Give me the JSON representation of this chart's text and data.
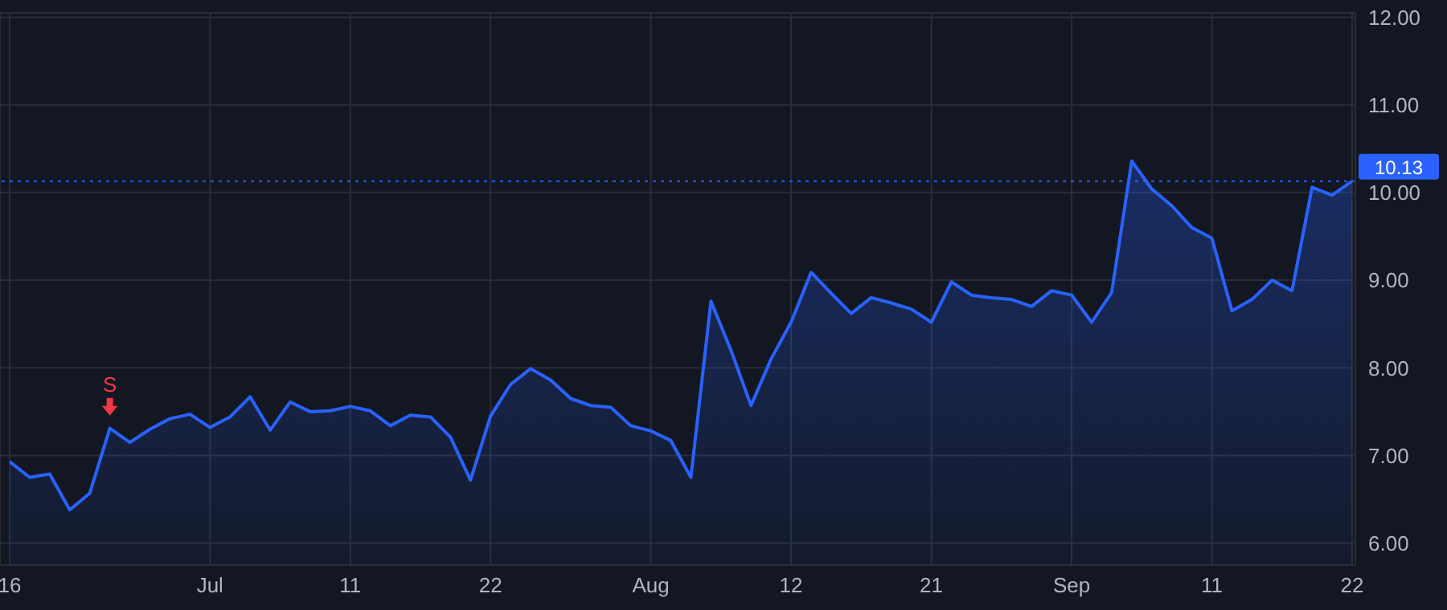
{
  "chart_data": {
    "type": "area",
    "categories": [
      "16",
      null,
      null,
      null,
      null,
      null,
      null,
      null,
      null,
      null,
      "Jul",
      null,
      null,
      null,
      null,
      null,
      null,
      "11",
      null,
      null,
      null,
      null,
      null,
      null,
      "22",
      null,
      null,
      null,
      null,
      null,
      null,
      null,
      "Aug",
      null,
      null,
      null,
      null,
      null,
      null,
      "12",
      null,
      null,
      null,
      null,
      null,
      null,
      "21",
      null,
      null,
      null,
      null,
      null,
      null,
      "Sep",
      null,
      null,
      null,
      null,
      null,
      null,
      "11",
      null,
      null,
      null,
      null,
      null,
      null,
      "22"
    ],
    "series": [
      {
        "color": "#2962ff",
        "values": [
          6.93,
          6.75,
          6.79,
          6.38,
          6.57,
          7.31,
          7.15,
          7.3,
          7.42,
          7.47,
          7.32,
          7.44,
          7.67,
          7.29,
          7.61,
          7.5,
          7.51,
          7.56,
          7.51,
          7.34,
          7.46,
          7.44,
          7.21,
          6.72,
          7.45,
          7.81,
          7.99,
          7.86,
          7.65,
          7.57,
          7.55,
          7.34,
          7.28,
          7.17,
          6.75,
          8.76,
          8.2,
          7.57,
          8.1,
          8.52,
          9.09,
          8.85,
          8.62,
          8.8,
          8.74,
          8.67,
          8.52,
          8.98,
          8.83,
          8.8,
          8.78,
          8.7,
          8.88,
          8.83,
          8.52,
          8.86,
          10.36,
          10.04,
          9.85,
          9.6,
          9.48,
          8.65,
          8.78,
          9.0,
          8.88,
          10.06,
          9.97,
          10.13
        ]
      }
    ],
    "ylim": [
      5.75,
      12.05
    ],
    "yticks": [
      {
        "value": 6,
        "label": "6.00"
      },
      {
        "value": 7,
        "label": "7.00"
      },
      {
        "value": 8,
        "label": "8.00"
      },
      {
        "value": 9,
        "label": "9.00"
      },
      {
        "value": 10,
        "label": "10.00"
      },
      {
        "value": 11,
        "label": "11.00"
      },
      {
        "value": 12,
        "label": "12.00"
      }
    ],
    "ref_lines": [
      {
        "axis": "y",
        "value": 10.13,
        "label": "10.13",
        "color": "#2962ff",
        "line_style": "dotted"
      }
    ],
    "annotations": [
      {
        "text": "S",
        "y": 7.31
      }
    ],
    "grid": true,
    "marker": "none"
  }
}
